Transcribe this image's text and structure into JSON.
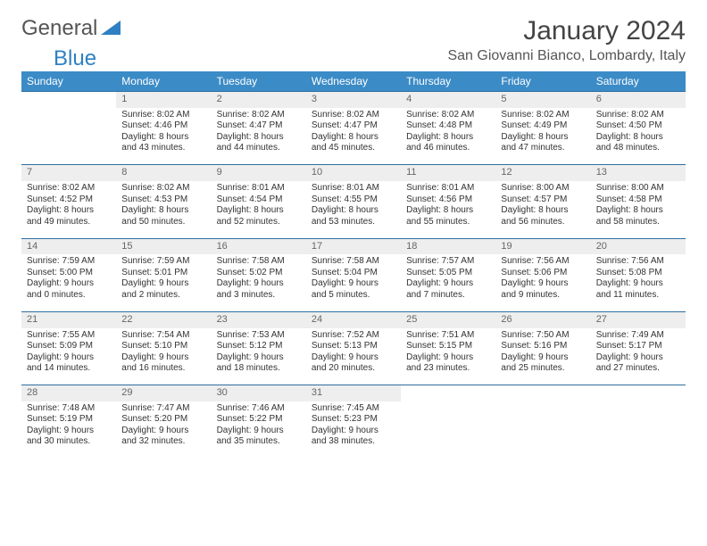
{
  "logo": {
    "text1": "General",
    "text2": "Blue"
  },
  "title": "January 2024",
  "location": "San Giovanni Bianco, Lombardy, Italy",
  "header_bg": "#3b8bc6",
  "daynum_bg": "#eeeeee",
  "rule_color": "#2f6ea0",
  "days": [
    "Sunday",
    "Monday",
    "Tuesday",
    "Wednesday",
    "Thursday",
    "Friday",
    "Saturday"
  ],
  "weeks": [
    {
      "nums": [
        "",
        "1",
        "2",
        "3",
        "4",
        "5",
        "6"
      ],
      "cells": [
        {
          "sr": "",
          "ss": "",
          "dl1": "",
          "dl2": ""
        },
        {
          "sr": "Sunrise: 8:02 AM",
          "ss": "Sunset: 4:46 PM",
          "dl1": "Daylight: 8 hours",
          "dl2": "and 43 minutes."
        },
        {
          "sr": "Sunrise: 8:02 AM",
          "ss": "Sunset: 4:47 PM",
          "dl1": "Daylight: 8 hours",
          "dl2": "and 44 minutes."
        },
        {
          "sr": "Sunrise: 8:02 AM",
          "ss": "Sunset: 4:47 PM",
          "dl1": "Daylight: 8 hours",
          "dl2": "and 45 minutes."
        },
        {
          "sr": "Sunrise: 8:02 AM",
          "ss": "Sunset: 4:48 PM",
          "dl1": "Daylight: 8 hours",
          "dl2": "and 46 minutes."
        },
        {
          "sr": "Sunrise: 8:02 AM",
          "ss": "Sunset: 4:49 PM",
          "dl1": "Daylight: 8 hours",
          "dl2": "and 47 minutes."
        },
        {
          "sr": "Sunrise: 8:02 AM",
          "ss": "Sunset: 4:50 PM",
          "dl1": "Daylight: 8 hours",
          "dl2": "and 48 minutes."
        }
      ]
    },
    {
      "nums": [
        "7",
        "8",
        "9",
        "10",
        "11",
        "12",
        "13"
      ],
      "cells": [
        {
          "sr": "Sunrise: 8:02 AM",
          "ss": "Sunset: 4:52 PM",
          "dl1": "Daylight: 8 hours",
          "dl2": "and 49 minutes."
        },
        {
          "sr": "Sunrise: 8:02 AM",
          "ss": "Sunset: 4:53 PM",
          "dl1": "Daylight: 8 hours",
          "dl2": "and 50 minutes."
        },
        {
          "sr": "Sunrise: 8:01 AM",
          "ss": "Sunset: 4:54 PM",
          "dl1": "Daylight: 8 hours",
          "dl2": "and 52 minutes."
        },
        {
          "sr": "Sunrise: 8:01 AM",
          "ss": "Sunset: 4:55 PM",
          "dl1": "Daylight: 8 hours",
          "dl2": "and 53 minutes."
        },
        {
          "sr": "Sunrise: 8:01 AM",
          "ss": "Sunset: 4:56 PM",
          "dl1": "Daylight: 8 hours",
          "dl2": "and 55 minutes."
        },
        {
          "sr": "Sunrise: 8:00 AM",
          "ss": "Sunset: 4:57 PM",
          "dl1": "Daylight: 8 hours",
          "dl2": "and 56 minutes."
        },
        {
          "sr": "Sunrise: 8:00 AM",
          "ss": "Sunset: 4:58 PM",
          "dl1": "Daylight: 8 hours",
          "dl2": "and 58 minutes."
        }
      ]
    },
    {
      "nums": [
        "14",
        "15",
        "16",
        "17",
        "18",
        "19",
        "20"
      ],
      "cells": [
        {
          "sr": "Sunrise: 7:59 AM",
          "ss": "Sunset: 5:00 PM",
          "dl1": "Daylight: 9 hours",
          "dl2": "and 0 minutes."
        },
        {
          "sr": "Sunrise: 7:59 AM",
          "ss": "Sunset: 5:01 PM",
          "dl1": "Daylight: 9 hours",
          "dl2": "and 2 minutes."
        },
        {
          "sr": "Sunrise: 7:58 AM",
          "ss": "Sunset: 5:02 PM",
          "dl1": "Daylight: 9 hours",
          "dl2": "and 3 minutes."
        },
        {
          "sr": "Sunrise: 7:58 AM",
          "ss": "Sunset: 5:04 PM",
          "dl1": "Daylight: 9 hours",
          "dl2": "and 5 minutes."
        },
        {
          "sr": "Sunrise: 7:57 AM",
          "ss": "Sunset: 5:05 PM",
          "dl1": "Daylight: 9 hours",
          "dl2": "and 7 minutes."
        },
        {
          "sr": "Sunrise: 7:56 AM",
          "ss": "Sunset: 5:06 PM",
          "dl1": "Daylight: 9 hours",
          "dl2": "and 9 minutes."
        },
        {
          "sr": "Sunrise: 7:56 AM",
          "ss": "Sunset: 5:08 PM",
          "dl1": "Daylight: 9 hours",
          "dl2": "and 11 minutes."
        }
      ]
    },
    {
      "nums": [
        "21",
        "22",
        "23",
        "24",
        "25",
        "26",
        "27"
      ],
      "cells": [
        {
          "sr": "Sunrise: 7:55 AM",
          "ss": "Sunset: 5:09 PM",
          "dl1": "Daylight: 9 hours",
          "dl2": "and 14 minutes."
        },
        {
          "sr": "Sunrise: 7:54 AM",
          "ss": "Sunset: 5:10 PM",
          "dl1": "Daylight: 9 hours",
          "dl2": "and 16 minutes."
        },
        {
          "sr": "Sunrise: 7:53 AM",
          "ss": "Sunset: 5:12 PM",
          "dl1": "Daylight: 9 hours",
          "dl2": "and 18 minutes."
        },
        {
          "sr": "Sunrise: 7:52 AM",
          "ss": "Sunset: 5:13 PM",
          "dl1": "Daylight: 9 hours",
          "dl2": "and 20 minutes."
        },
        {
          "sr": "Sunrise: 7:51 AM",
          "ss": "Sunset: 5:15 PM",
          "dl1": "Daylight: 9 hours",
          "dl2": "and 23 minutes."
        },
        {
          "sr": "Sunrise: 7:50 AM",
          "ss": "Sunset: 5:16 PM",
          "dl1": "Daylight: 9 hours",
          "dl2": "and 25 minutes."
        },
        {
          "sr": "Sunrise: 7:49 AM",
          "ss": "Sunset: 5:17 PM",
          "dl1": "Daylight: 9 hours",
          "dl2": "and 27 minutes."
        }
      ]
    },
    {
      "nums": [
        "28",
        "29",
        "30",
        "31",
        "",
        "",
        ""
      ],
      "cells": [
        {
          "sr": "Sunrise: 7:48 AM",
          "ss": "Sunset: 5:19 PM",
          "dl1": "Daylight: 9 hours",
          "dl2": "and 30 minutes."
        },
        {
          "sr": "Sunrise: 7:47 AM",
          "ss": "Sunset: 5:20 PM",
          "dl1": "Daylight: 9 hours",
          "dl2": "and 32 minutes."
        },
        {
          "sr": "Sunrise: 7:46 AM",
          "ss": "Sunset: 5:22 PM",
          "dl1": "Daylight: 9 hours",
          "dl2": "and 35 minutes."
        },
        {
          "sr": "Sunrise: 7:45 AM",
          "ss": "Sunset: 5:23 PM",
          "dl1": "Daylight: 9 hours",
          "dl2": "and 38 minutes."
        },
        {
          "sr": "",
          "ss": "",
          "dl1": "",
          "dl2": ""
        },
        {
          "sr": "",
          "ss": "",
          "dl1": "",
          "dl2": ""
        },
        {
          "sr": "",
          "ss": "",
          "dl1": "",
          "dl2": ""
        }
      ]
    }
  ]
}
